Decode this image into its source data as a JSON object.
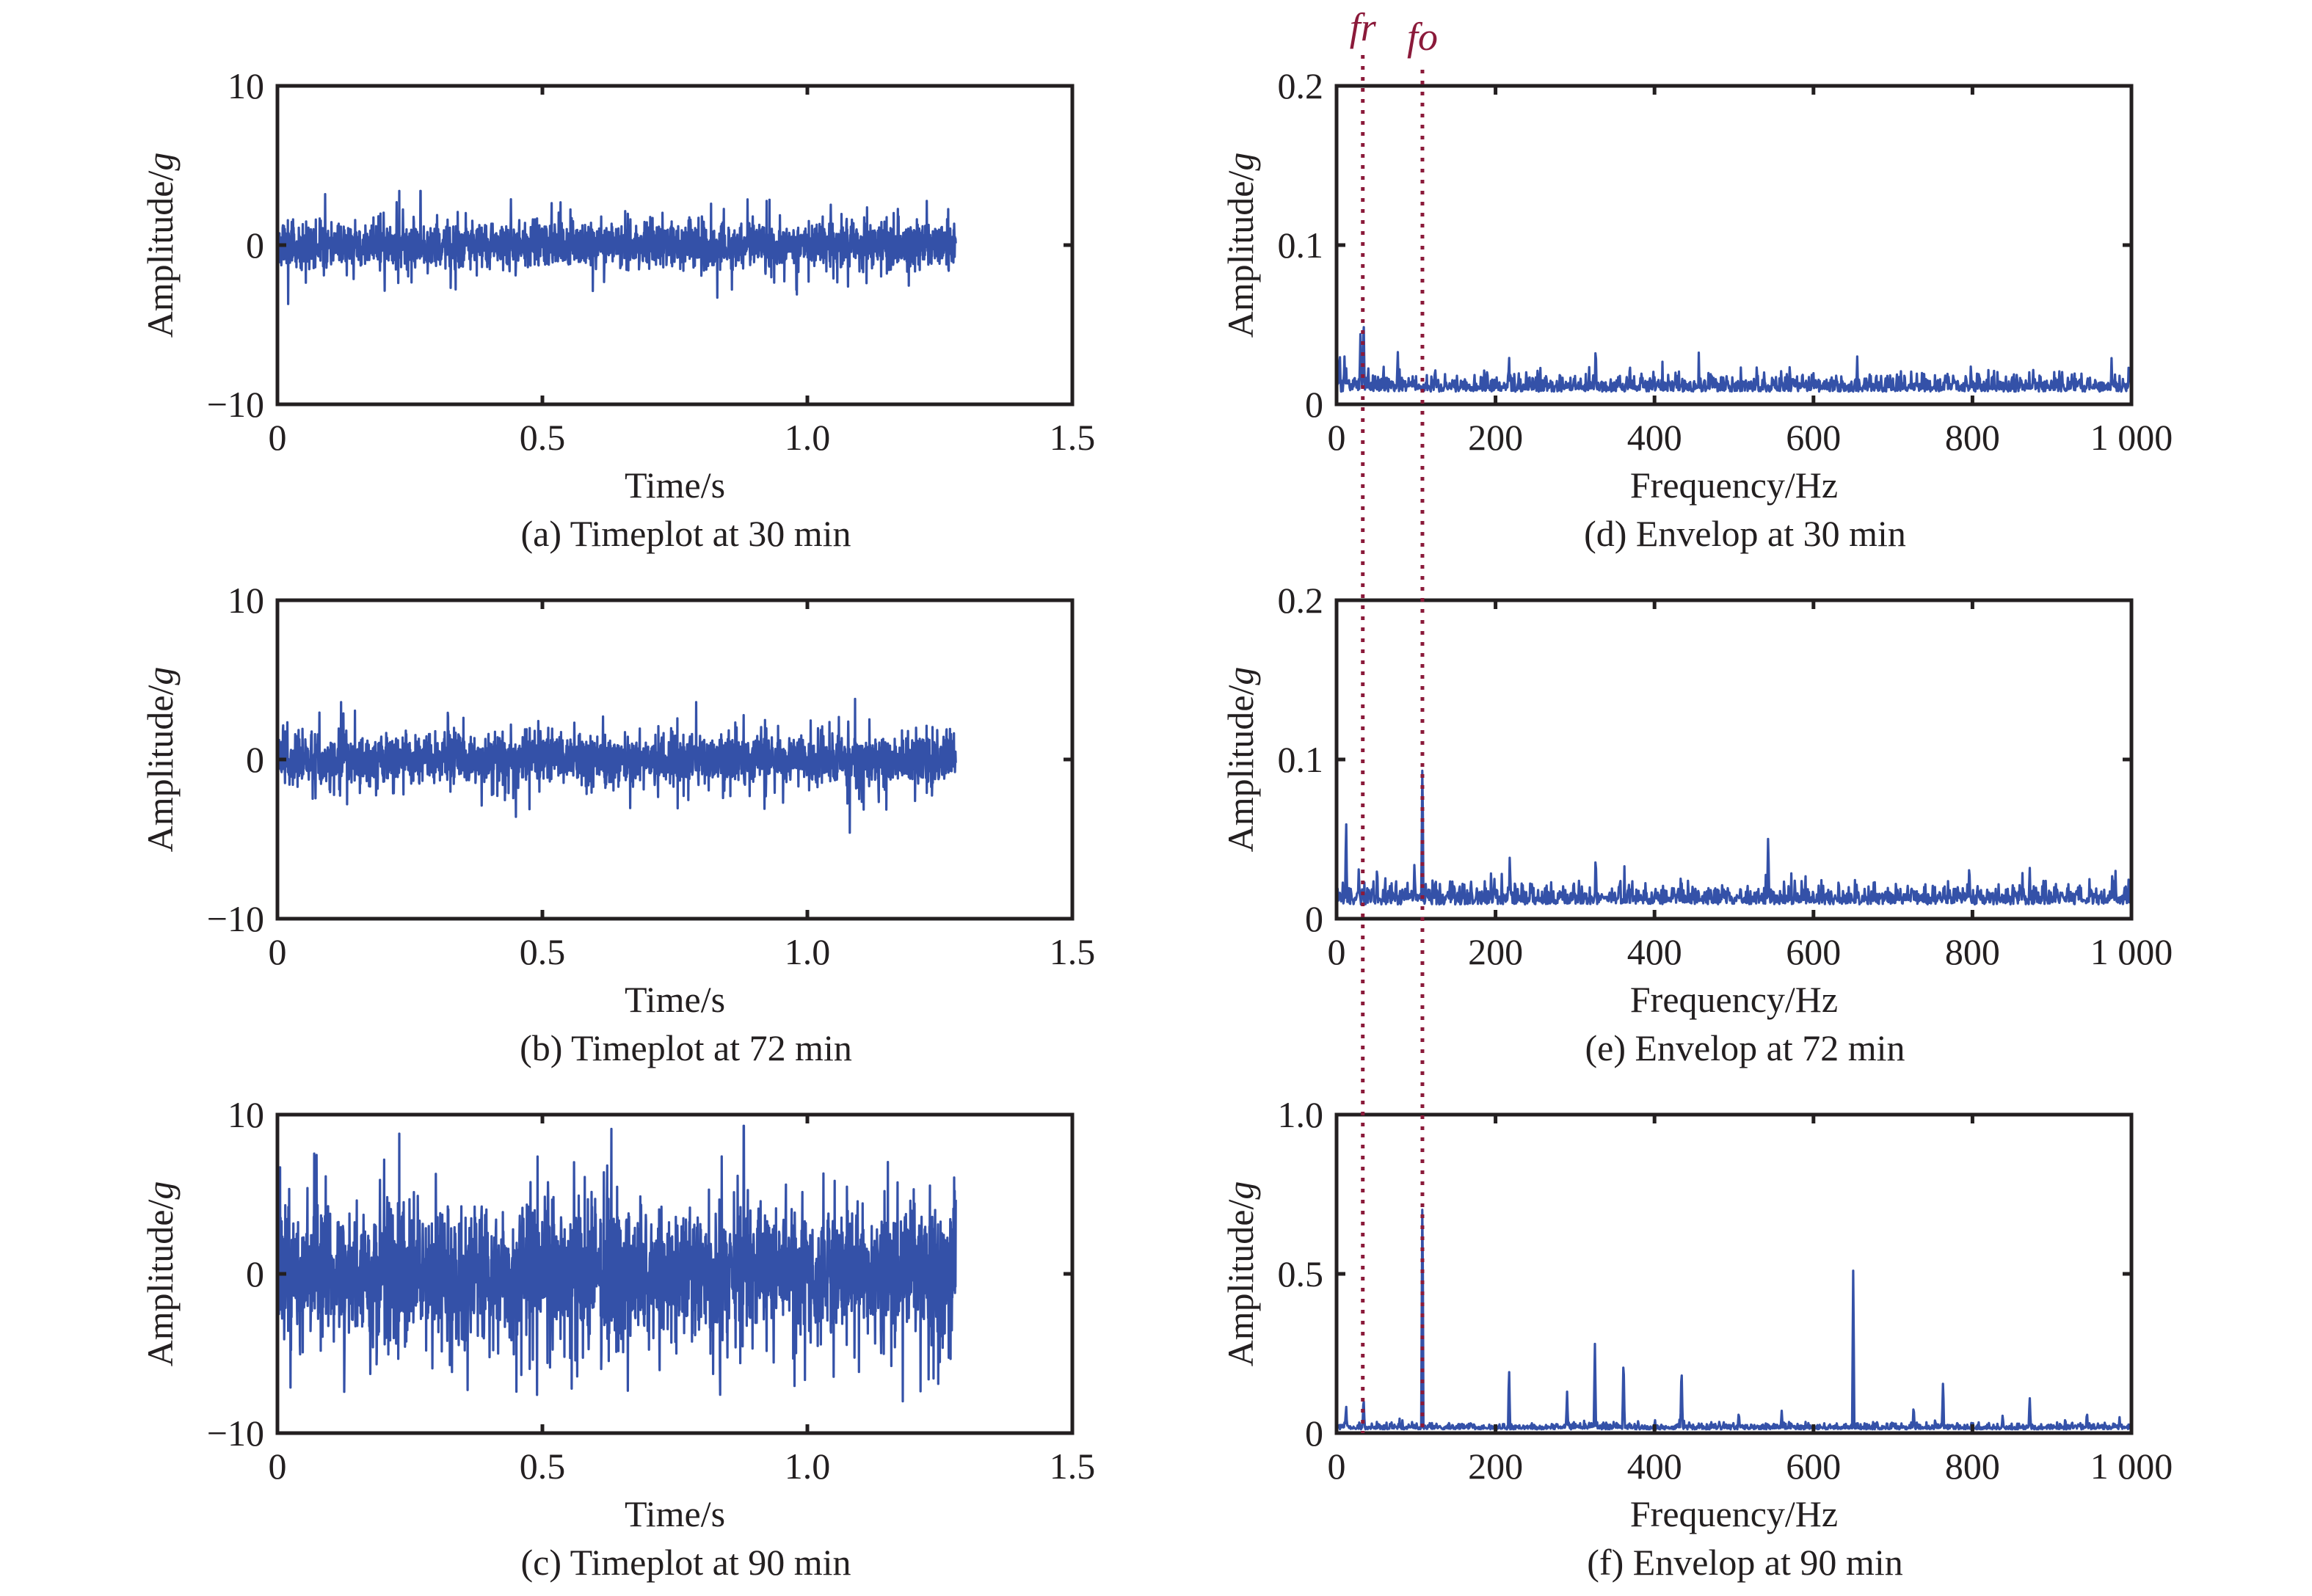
{
  "figure": {
    "line_color": "#3451a8",
    "marker_color": "#8b1a3a",
    "axis_color": "#231f20"
  },
  "markers": [
    {
      "name": "fr",
      "label": "fr",
      "frequency_hz": 33
    },
    {
      "name": "fo",
      "label": "fo",
      "frequency_hz": 108
    }
  ],
  "chart_data": [
    {
      "id": "a",
      "type": "line",
      "column": "left",
      "row": 0,
      "caption": "(a) Timeplot at 30 min",
      "title": "Timeplot at 30 min",
      "xlabel": "Time/s",
      "ylabel_main": "Amplitude/",
      "ylabel_unit": "g",
      "xlim": [
        0,
        1.5
      ],
      "ylim": [
        -10,
        10
      ],
      "xticks": [
        0,
        0.5,
        1.0,
        1.5
      ],
      "xtick_labels": [
        "0",
        "0.5",
        "1.0",
        "1.5"
      ],
      "yticks": [
        -10,
        0,
        10
      ],
      "ytick_labels": [
        "−10",
        "0",
        "10"
      ],
      "signal": {
        "kind": "time",
        "duration_s": 1.28,
        "envelope_g": 1.5,
        "peak_g": 3.5,
        "seed": 11
      },
      "notable_peaks": [
        {
          "t": 0.09,
          "value": 3.2
        },
        {
          "t": 0.23,
          "value": 3.4
        },
        {
          "t": 0.27,
          "value": 3.4
        },
        {
          "t": 0.02,
          "value": -3.7
        },
        {
          "t": 0.83,
          "value": -3.3
        },
        {
          "t": 0.98,
          "value": -3.1
        }
      ]
    },
    {
      "id": "b",
      "type": "line",
      "column": "left",
      "row": 1,
      "caption": "(b) Timeplot at 72 min",
      "title": "Timeplot at 72 min",
      "xlabel": "Time/s",
      "ylabel_main": "Amplitude/",
      "ylabel_unit": "g",
      "xlim": [
        0,
        1.5
      ],
      "ylim": [
        -10,
        10
      ],
      "xticks": [
        0,
        0.5,
        1.0,
        1.5
      ],
      "xtick_labels": [
        "0",
        "0.5",
        "1.0",
        "1.5"
      ],
      "yticks": [
        -10,
        0,
        10
      ],
      "ytick_labels": [
        "−10",
        "0",
        "10"
      ],
      "signal": {
        "kind": "time",
        "duration_s": 1.28,
        "envelope_g": 1.7,
        "peak_g": 3.8,
        "seed": 23
      },
      "notable_peaks": [
        {
          "t": 0.12,
          "value": 3.6
        },
        {
          "t": 0.79,
          "value": 3.6
        },
        {
          "t": 1.09,
          "value": 3.8
        },
        {
          "t": 1.08,
          "value": -4.6
        },
        {
          "t": 0.45,
          "value": -3.6
        }
      ]
    },
    {
      "id": "c",
      "type": "line",
      "column": "left",
      "row": 2,
      "caption": "(c) Timeplot at 90 min",
      "title": "Timeplot at 90 min",
      "xlabel": "Time/s",
      "ylabel_main": "Amplitude/",
      "ylabel_unit": "g",
      "xlim": [
        0,
        1.5
      ],
      "ylim": [
        -10,
        10
      ],
      "xticks": [
        0,
        0.5,
        1.0,
        1.5
      ],
      "xtick_labels": [
        "0",
        "0.5",
        "1.0",
        "1.5"
      ],
      "yticks": [
        -10,
        0,
        10
      ],
      "ytick_labels": [
        "−10",
        "0",
        "10"
      ],
      "signal": {
        "kind": "time",
        "duration_s": 1.28,
        "envelope_g": 4.5,
        "peak_g": 9.0,
        "seed": 37
      },
      "notable_peaks": [
        {
          "t": 0.23,
          "value": 8.8
        },
        {
          "t": 0.63,
          "value": 9.1
        },
        {
          "t": 0.88,
          "value": 9.3
        },
        {
          "t": 1.18,
          "value": -8.0
        },
        {
          "t": 0.49,
          "value": -7.6
        }
      ]
    },
    {
      "id": "d",
      "type": "line",
      "column": "right",
      "row": 0,
      "caption": "(d) Envelop at 30 min",
      "title": "Envelop at 30 min",
      "xlabel": "Frequency/Hz",
      "ylabel_main": "Amplitude/",
      "ylabel_unit": "g",
      "xlim": [
        0,
        1000
      ],
      "ylim": [
        0,
        0.2
      ],
      "xticks": [
        0,
        200,
        400,
        600,
        800,
        1000
      ],
      "xtick_labels": [
        "0",
        "200",
        "400",
        "600",
        "800",
        "1 000"
      ],
      "yticks": [
        0,
        0.1,
        0.2
      ],
      "ytick_labels": [
        "0",
        "0.1",
        "0.2"
      ],
      "signal": {
        "kind": "spectrum",
        "noise_floor": 0.008,
        "noise_var": 0.007,
        "seed": 51
      },
      "peaks": [
        {
          "f": 4,
          "value": 0.036
        },
        {
          "f": 10,
          "value": 0.03
        },
        {
          "f": 30,
          "value": 0.044
        },
        {
          "f": 34,
          "value": 0.059
        },
        {
          "f": 77,
          "value": 0.036
        },
        {
          "f": 124,
          "value": 0.026
        },
        {
          "f": 217,
          "value": 0.032
        },
        {
          "f": 326,
          "value": 0.039
        },
        {
          "f": 369,
          "value": 0.028
        },
        {
          "f": 471,
          "value": 0.023
        },
        {
          "f": 655,
          "value": 0.03
        },
        {
          "f": 766,
          "value": 0.022
        },
        {
          "f": 798,
          "value": 0.026
        },
        {
          "f": 975,
          "value": 0.029
        }
      ]
    },
    {
      "id": "e",
      "type": "line",
      "column": "right",
      "row": 1,
      "caption": "(e) Envelop at 72 min",
      "title": "Envelop at 72 min",
      "xlabel": "Frequency/Hz",
      "ylabel_main": "Amplitude/",
      "ylabel_unit": "g",
      "xlim": [
        0,
        1000
      ],
      "ylim": [
        0,
        0.2
      ],
      "xticks": [
        0,
        200,
        400,
        600,
        800,
        1000
      ],
      "xtick_labels": [
        "0",
        "200",
        "400",
        "600",
        "800",
        "1 000"
      ],
      "yticks": [
        0,
        0.1,
        0.2
      ],
      "ytick_labels": [
        "0",
        "0.1",
        "0.2"
      ],
      "signal": {
        "kind": "spectrum",
        "noise_floor": 0.009,
        "noise_var": 0.008,
        "seed": 67
      },
      "peaks": [
        {
          "f": 12,
          "value": 0.065
        },
        {
          "f": 28,
          "value": 0.034
        },
        {
          "f": 51,
          "value": 0.036
        },
        {
          "f": 98,
          "value": 0.037
        },
        {
          "f": 108,
          "value": 0.102
        },
        {
          "f": 218,
          "value": 0.042
        },
        {
          "f": 326,
          "value": 0.043
        },
        {
          "f": 434,
          "value": 0.027
        },
        {
          "f": 543,
          "value": 0.055
        },
        {
          "f": 796,
          "value": 0.037
        },
        {
          "f": 872,
          "value": 0.035
        },
        {
          "f": 980,
          "value": 0.03
        }
      ]
    },
    {
      "id": "f",
      "type": "line",
      "column": "right",
      "row": 2,
      "caption": "(f) Envelop at 90 min",
      "title": "Envelop at 90 min",
      "xlabel": "Frequency/Hz",
      "ylabel_main": "Amplitude/",
      "ylabel_unit": "g",
      "xlim": [
        0,
        1000
      ],
      "ylim": [
        0,
        1.0
      ],
      "xticks": [
        0,
        200,
        400,
        600,
        800,
        1000
      ],
      "xtick_labels": [
        "0",
        "200",
        "400",
        "600",
        "800",
        "1 000"
      ],
      "yticks": [
        0,
        0.5,
        1.0
      ],
      "ytick_labels": [
        "0",
        "0.5",
        "1.0"
      ],
      "signal": {
        "kind": "spectrum",
        "noise_floor": 0.012,
        "noise_var": 0.012,
        "seed": 83
      },
      "peaks": [
        {
          "f": 12,
          "value": 0.09
        },
        {
          "f": 34,
          "value": 0.12
        },
        {
          "f": 108,
          "value": 0.77
        },
        {
          "f": 217,
          "value": 0.21
        },
        {
          "f": 290,
          "value": 0.13
        },
        {
          "f": 325,
          "value": 0.28
        },
        {
          "f": 361,
          "value": 0.25
        },
        {
          "f": 434,
          "value": 0.22
        },
        {
          "f": 506,
          "value": 0.07
        },
        {
          "f": 560,
          "value": 0.07
        },
        {
          "f": 650,
          "value": 0.51
        },
        {
          "f": 726,
          "value": 0.09
        },
        {
          "f": 763,
          "value": 0.17
        },
        {
          "f": 838,
          "value": 0.06
        },
        {
          "f": 872,
          "value": 0.12
        },
        {
          "f": 944,
          "value": 0.07
        },
        {
          "f": 985,
          "value": 0.05
        }
      ]
    }
  ]
}
